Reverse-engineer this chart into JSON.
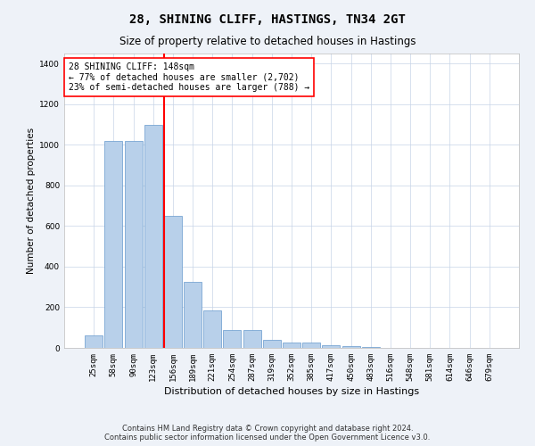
{
  "title": "28, SHINING CLIFF, HASTINGS, TN34 2GT",
  "subtitle": "Size of property relative to detached houses in Hastings",
  "xlabel": "Distribution of detached houses by size in Hastings",
  "ylabel": "Number of detached properties",
  "categories": [
    "25sqm",
    "58sqm",
    "90sqm",
    "123sqm",
    "156sqm",
    "189sqm",
    "221sqm",
    "254sqm",
    "287sqm",
    "319sqm",
    "352sqm",
    "385sqm",
    "417sqm",
    "450sqm",
    "483sqm",
    "516sqm",
    "548sqm",
    "581sqm",
    "614sqm",
    "646sqm",
    "679sqm"
  ],
  "values": [
    60,
    1020,
    1020,
    1100,
    650,
    325,
    185,
    90,
    90,
    40,
    25,
    25,
    15,
    10,
    5,
    2,
    2,
    2,
    0,
    0,
    0
  ],
  "bar_color": "#b8d0ea",
  "bar_edge_color": "#6699cc",
  "vline_x": 4.0,
  "vline_color": "red",
  "annotation_text": "28 SHINING CLIFF: 148sqm\n← 77% of detached houses are smaller (2,702)\n23% of semi-detached houses are larger (788) →",
  "annotation_box_color": "white",
  "annotation_box_edge_color": "red",
  "ylim": [
    0,
    1450
  ],
  "yticks": [
    0,
    200,
    400,
    600,
    800,
    1000,
    1200,
    1400
  ],
  "footer_text": "Contains HM Land Registry data © Crown copyright and database right 2024.\nContains public sector information licensed under the Open Government Licence v3.0.",
  "background_color": "#eef2f8",
  "plot_background_color": "#ffffff",
  "grid_color": "#c8d4e8",
  "title_fontsize": 10,
  "subtitle_fontsize": 8.5,
  "ylabel_fontsize": 7.5,
  "xlabel_fontsize": 8,
  "tick_fontsize": 6.5,
  "annotation_fontsize": 7,
  "footer_fontsize": 6
}
